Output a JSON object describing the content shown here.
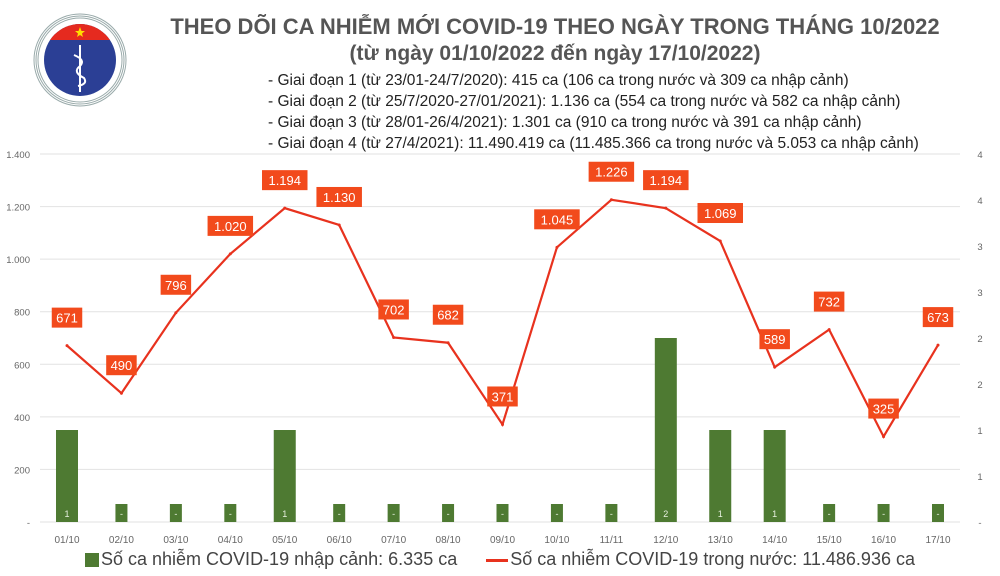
{
  "header": {
    "title": "THEO DÕI CA NHIỄM MỚI COVID-19 THEO NGÀY TRONG THÁNG 10/2022",
    "subtitle": "(từ ngày 01/10/2022 đến ngày 17/10/2022)",
    "stages": [
      "- Giai đoạn 1 (từ 23/01-24/7/2020): 415 ca (106 ca trong nước và 309 ca nhập cảnh)",
      "- Giai đoạn 2 (từ 25/7/2020-27/01/2021): 1.136 ca (554 ca trong nước và 582 ca nhập cảnh)",
      "- Giai đoạn 3 (từ 28/01-26/4/2021): 1.301 ca (910 ca trong nước và 391 ca nhập cảnh)",
      "- Giai đoạn 4 (từ 27/4/2021): 11.490.419 ca (11.485.366 ca trong nước và 5.053 ca nhập cảnh)"
    ],
    "logo_text": [
      "BỘ Y TẾ",
      "MINISTRY OF HEALTH"
    ]
  },
  "chart_data": {
    "type": "bar+line",
    "categories": [
      "01/10",
      "02/10",
      "03/10",
      "04/10",
      "05/10",
      "06/10",
      "07/10",
      "08/10",
      "09/10",
      "10/10",
      "11/11",
      "12/10",
      "13/10",
      "14/10",
      "15/10",
      "16/10",
      "17/10"
    ],
    "series": [
      {
        "name": "Số ca nhiễm COVID-19 nhập cảnh: 6.335 ca",
        "type": "bar",
        "axis": "right",
        "color": "#4e7a32",
        "values": [
          1,
          0,
          0,
          0,
          1,
          0,
          0,
          0,
          0,
          0,
          0,
          2,
          1,
          1,
          0,
          0,
          0
        ],
        "labels": [
          "1",
          "-",
          "-",
          "-",
          "1",
          "-",
          "-",
          "-",
          "-",
          "-",
          "-",
          "2",
          "1",
          "1",
          "-",
          "-",
          "-"
        ]
      },
      {
        "name": "Số ca nhiễm COVID-19 trong nước: 11.486.936 ca",
        "type": "line",
        "axis": "left",
        "color": "#e8321e",
        "values": [
          671,
          490,
          796,
          1020,
          1194,
          1130,
          702,
          682,
          371,
          1045,
          1226,
          1194,
          1069,
          589,
          732,
          325,
          673
        ],
        "labels": [
          "671",
          "490",
          "796",
          "1.020",
          "1.194",
          "1.130",
          "702",
          "682",
          "371",
          "1.045",
          "1.226",
          "1.194",
          "1.069",
          "589",
          "732",
          "325",
          "673"
        ]
      }
    ],
    "y_left": {
      "range": [
        0,
        1400
      ],
      "ticks": [
        "-",
        "200",
        "400",
        "600",
        "800",
        "1.000",
        "1.200",
        "1.400"
      ]
    },
    "y_right": {
      "range": [
        0,
        4
      ],
      "ticks": [
        "-",
        "1",
        "1",
        "2",
        "2",
        "3",
        "3",
        "4",
        "4"
      ]
    },
    "grid": true,
    "legend": "bottom"
  }
}
